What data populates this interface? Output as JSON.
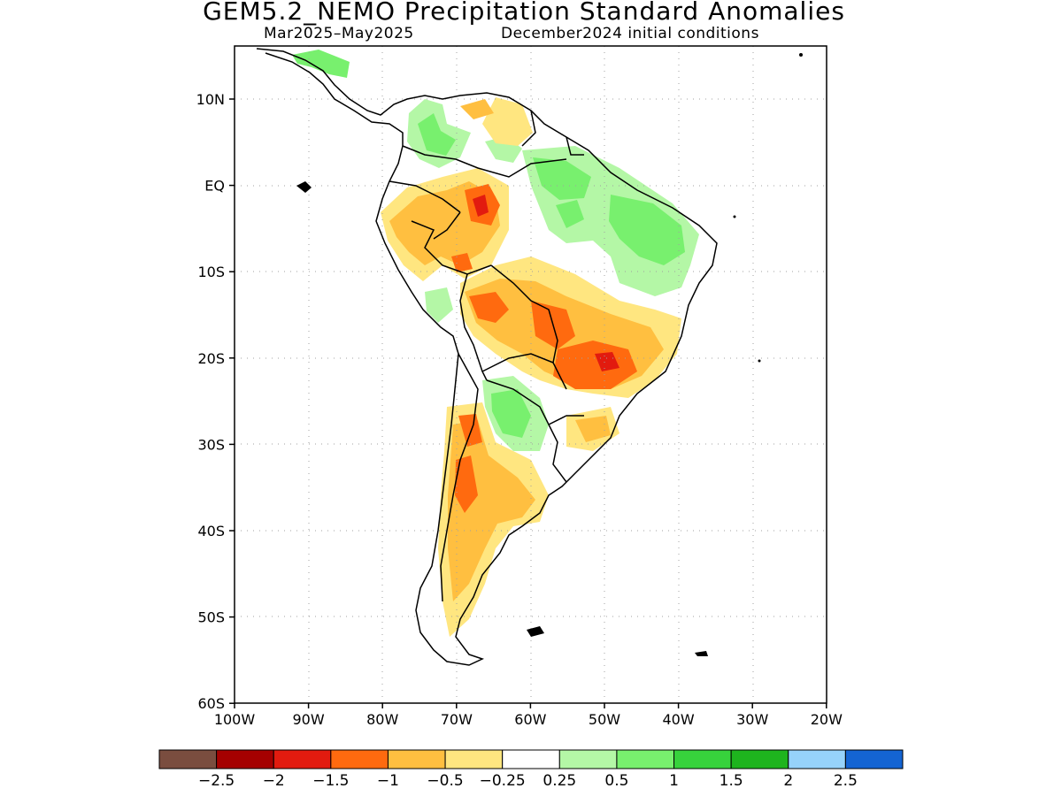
{
  "title": "GEM5.2_NEMO Precipitation Standard Anomalies",
  "subtitle_period": "Mar2025–May2025",
  "subtitle_init": "December2024 initial conditions",
  "axes": {
    "lat_ticks": [
      "10N",
      "EQ",
      "10S",
      "20S",
      "30S",
      "40S",
      "50S",
      "60S"
    ],
    "lon_ticks": [
      "100W",
      "90W",
      "80W",
      "70W",
      "60W",
      "50W",
      "40W",
      "30W",
      "20W"
    ],
    "lon_range": [
      -100,
      -20
    ],
    "lat_range": [
      -60,
      16
    ]
  },
  "legend": {
    "colors": [
      "#7a4d3f",
      "#a50000",
      "#e21b0f",
      "#ff6a0f",
      "#ffbf40",
      "#ffe680",
      "#ffffff",
      "#b4f7a6",
      "#78f06e",
      "#37d23c",
      "#1eb41e",
      "#96d2fa",
      "#1464d2"
    ],
    "labels": [
      "−2.5",
      "−2",
      "−1.5",
      "−1",
      "−0.5",
      "−0.25",
      "0.25",
      "0.5",
      "1",
      "1.5",
      "2",
      "2.5"
    ]
  }
}
